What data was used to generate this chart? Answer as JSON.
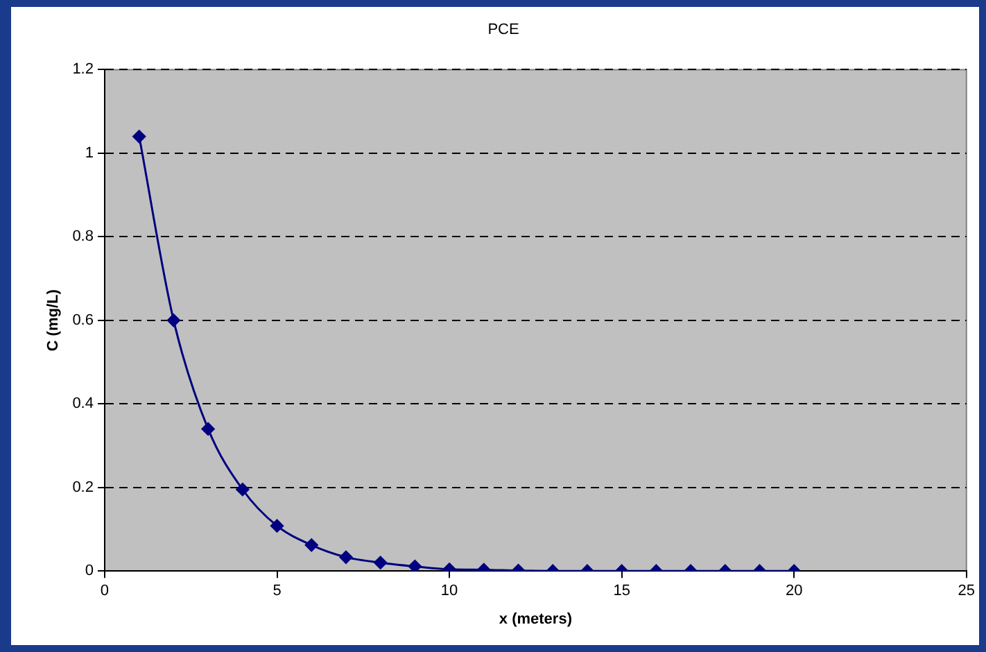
{
  "chart_data": {
    "type": "line",
    "title": "PCE",
    "xlabel": "x (meters)",
    "ylabel": "C (mg/L)",
    "x": [
      1,
      2,
      3,
      4,
      5,
      6,
      7,
      8,
      9,
      10,
      11,
      12,
      13,
      14,
      15,
      16,
      17,
      18,
      19,
      20
    ],
    "series": [
      {
        "color": "#000080",
        "values": [
          1.04,
          0.6,
          0.34,
          0.195,
          0.108,
          0.062,
          0.033,
          0.02,
          0.011,
          0.004,
          0.003,
          0.001,
          0,
          0,
          0,
          0,
          0,
          0,
          0,
          0
        ]
      }
    ],
    "xlim": [
      0,
      25
    ],
    "xticks": [
      0,
      5,
      10,
      15,
      20,
      25
    ],
    "ylim": [
      0,
      1.2
    ],
    "yticks": [
      0,
      0.2,
      0.4,
      0.6,
      0.8,
      1,
      1.2
    ],
    "grid": "y",
    "legend": false,
    "marker": "diamond",
    "line_style": "solid"
  }
}
